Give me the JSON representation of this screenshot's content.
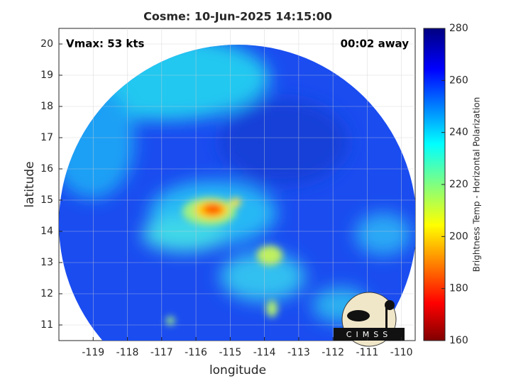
{
  "chart_data": {
    "type": "map",
    "title": "Cosme: 10-Jun-2025 14:15:00",
    "annotations": [
      "Vmax: 53 kts",
      "00:02 away"
    ],
    "x_label": "longitude",
    "y_label": "latitude",
    "xlim": [
      -120,
      -109.6
    ],
    "ylim": [
      10.5,
      20.5
    ],
    "xticks": [
      -119,
      -118,
      -117,
      -116,
      -115,
      -114,
      -113,
      -112,
      -111,
      -110
    ],
    "yticks": [
      11,
      12,
      13,
      14,
      15,
      16,
      17,
      18,
      19,
      20
    ],
    "grid": true,
    "colorbar": {
      "label": "Brightness Temp - Horizontal Polarization",
      "lim": [
        160,
        280
      ],
      "ticks": [
        160,
        180,
        200,
        220,
        240,
        260,
        280
      ]
    },
    "logo": "CIMSS"
  }
}
